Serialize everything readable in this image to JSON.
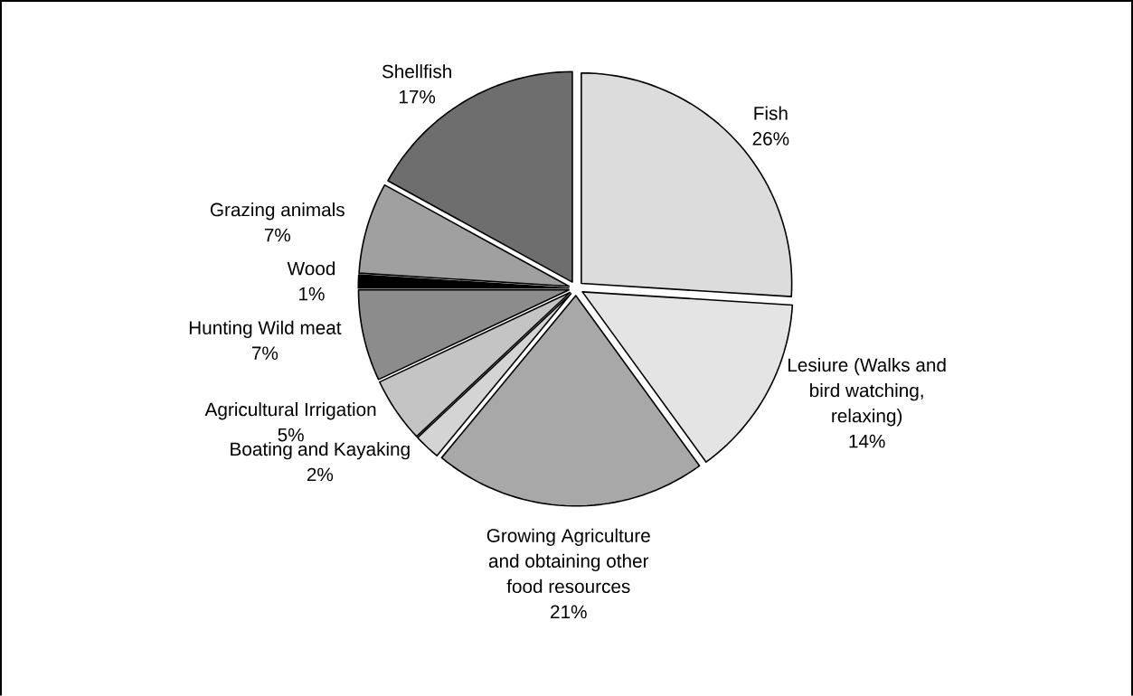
{
  "chart_data": {
    "type": "pie",
    "categories": [
      "Fish",
      "Lesiure (Walks and bird watching, relaxing)",
      "Growing Agriculture and obtaining other food resources",
      "Boating and Kayaking",
      "Agricultural Irrigation",
      "Hunting Wild meat",
      "Wood",
      "Grazing animals",
      "Shellfish"
    ],
    "values": [
      26,
      14,
      21,
      2,
      5,
      7,
      1,
      7,
      17
    ],
    "value_labels": [
      "26%",
      "14%",
      "21%",
      "2%",
      "5%",
      "7%",
      "1%",
      "7%",
      "17%"
    ],
    "colors": [
      "#dcdcdc",
      "#e4e4e4",
      "#a8a8a8",
      "#d4d4d4",
      "#c4c4c4",
      "#8c8c8c",
      "#000000",
      "#a0a0a0",
      "#6e6e6e"
    ]
  }
}
